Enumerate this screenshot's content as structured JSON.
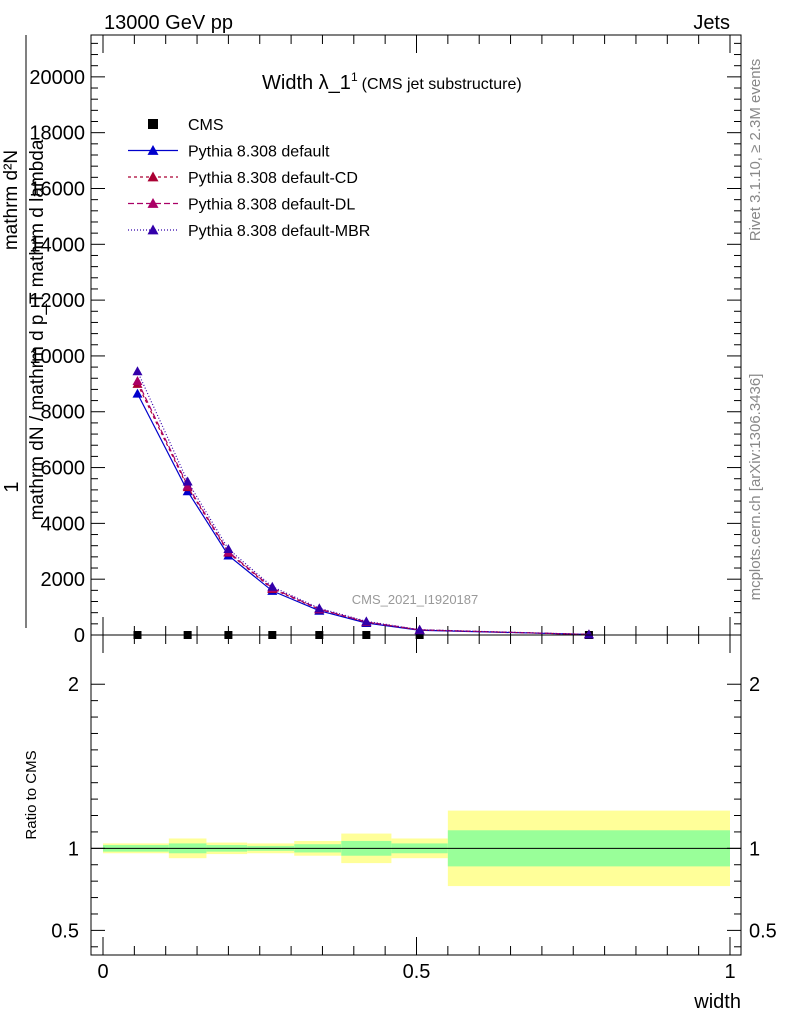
{
  "header": {
    "process": "13000 GeV pp",
    "category": "Jets"
  },
  "side_labels": {
    "rivet": "Rivet 3.1.10, ≥ 2.3M events",
    "mcplots": "mcplots.cern.ch [arXiv:1306.3436]"
  },
  "chart_data": [
    {
      "type": "line",
      "title": "Width λ_1",
      "title_sup": "1",
      "subtitle": "(CMS jet substructure)",
      "watermark": "CMS_2021_I1920187",
      "ylabel_num": "1",
      "ylabel_den": "mathrm dN / mathrm d p_T mathrm d lambda",
      "ylabel_num_sub": "mathrm d²N",
      "xlim": [
        0,
        1
      ],
      "ylim": [
        0,
        21500
      ],
      "yticks": [
        0,
        2000,
        4000,
        6000,
        8000,
        10000,
        12000,
        14000,
        16000,
        18000,
        20000
      ],
      "ytick_labels": [
        "0",
        "2000",
        "4000",
        "6000",
        "8000",
        "10000",
        "12000",
        "14000",
        "16000",
        "18000",
        "20000"
      ],
      "grid": false,
      "legend_position": "top-left",
      "x": [
        0.055,
        0.135,
        0.2,
        0.27,
        0.345,
        0.42,
        0.505,
        0.775
      ],
      "series": [
        {
          "name": "CMS",
          "color": "#000000",
          "marker": "square",
          "dash": "none",
          "values": [
            0,
            0,
            0,
            0,
            0,
            0,
            0,
            0
          ]
        },
        {
          "name": "Pythia 8.308 default",
          "color": "#0000cc",
          "marker": "triangle",
          "dash": "solid",
          "values": [
            8650,
            5150,
            2850,
            1580,
            870,
            430,
            170,
            20
          ]
        },
        {
          "name": "Pythia 8.308 default-CD",
          "color": "#aa0033",
          "marker": "triangle",
          "dash": "3,3",
          "values": [
            9000,
            5300,
            2950,
            1650,
            920,
            460,
            180,
            20
          ]
        },
        {
          "name": "Pythia 8.308 default-DL",
          "color": "#aa0066",
          "marker": "triangle",
          "dash": "6,3",
          "values": [
            9100,
            5350,
            2980,
            1680,
            930,
            470,
            185,
            20
          ]
        },
        {
          "name": "Pythia 8.308 default-MBR",
          "color": "#3300aa",
          "marker": "triangle",
          "dash": "1,2",
          "values": [
            9450,
            5500,
            3080,
            1730,
            960,
            490,
            190,
            20
          ]
        }
      ]
    },
    {
      "type": "area",
      "ylabel": "Ratio to CMS",
      "xlabel": "width",
      "xlim": [
        0,
        1
      ],
      "ylim": [
        0.35,
        2.3
      ],
      "yticks": [
        0.5,
        1,
        2
      ],
      "ytick_labels": [
        "0.5",
        "1",
        "2"
      ],
      "xticks": [
        0,
        0.5,
        1
      ],
      "xtick_labels": [
        "0",
        "0.5",
        "1"
      ],
      "band_colors": {
        "inner": "#99ff99",
        "outer": "#ffff99"
      },
      "bins": [
        {
          "lo": 0.0,
          "hi": 0.105,
          "inner": [
            0.98,
            1.02
          ],
          "outer": [
            0.97,
            1.03
          ]
        },
        {
          "lo": 0.105,
          "hi": 0.165,
          "inner": [
            0.97,
            1.03
          ],
          "outer": [
            0.94,
            1.06
          ]
        },
        {
          "lo": 0.165,
          "hi": 0.23,
          "inner": [
            0.98,
            1.02
          ],
          "outer": [
            0.965,
            1.035
          ]
        },
        {
          "lo": 0.23,
          "hi": 0.305,
          "inner": [
            0.985,
            1.015
          ],
          "outer": [
            0.97,
            1.03
          ]
        },
        {
          "lo": 0.305,
          "hi": 0.38,
          "inner": [
            0.975,
            1.025
          ],
          "outer": [
            0.955,
            1.045
          ]
        },
        {
          "lo": 0.38,
          "hi": 0.46,
          "inner": [
            0.955,
            1.045
          ],
          "outer": [
            0.91,
            1.09
          ]
        },
        {
          "lo": 0.46,
          "hi": 0.55,
          "inner": [
            0.97,
            1.03
          ],
          "outer": [
            0.94,
            1.06
          ]
        },
        {
          "lo": 0.55,
          "hi": 1.0,
          "inner": [
            0.89,
            1.11
          ],
          "outer": [
            0.77,
            1.23
          ]
        }
      ]
    }
  ]
}
